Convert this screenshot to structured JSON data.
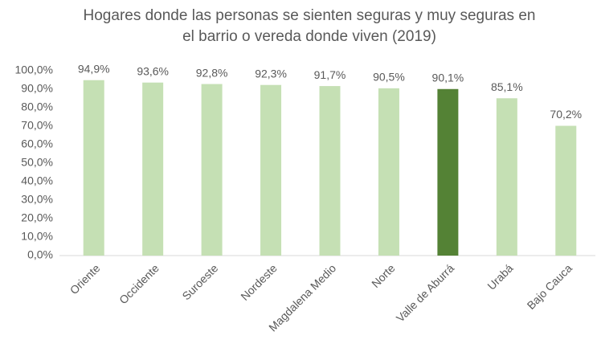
{
  "chart_data": {
    "type": "bar",
    "title": [
      "Hogares donde las personas se sienten seguras y muy seguras en",
      "el barrio o vereda donde viven (2019)"
    ],
    "categories": [
      "Oriente",
      "Occidente",
      "Suroeste",
      "Nordeste",
      "Magdalena Medio",
      "Norte",
      "Valle de Aburrá",
      "Urabá",
      "Bajo Cauca"
    ],
    "values": [
      94.9,
      93.6,
      92.8,
      92.3,
      91.7,
      90.5,
      90.1,
      85.1,
      70.2
    ],
    "value_labels": [
      "94,9%",
      "93,6%",
      "92,8%",
      "92,3%",
      "91,7%",
      "90,5%",
      "90,1%",
      "85,1%",
      "70,2%"
    ],
    "colors": [
      "#c5e0b4",
      "#c5e0b4",
      "#c5e0b4",
      "#c5e0b4",
      "#c5e0b4",
      "#c5e0b4",
      "#548235",
      "#c5e0b4",
      "#c5e0b4"
    ],
    "ylim": [
      0,
      100
    ],
    "yticks": [
      {
        "value": 0,
        "label": "0,0%"
      },
      {
        "value": 10,
        "label": "10,0%"
      },
      {
        "value": 20,
        "label": "20,0%"
      },
      {
        "value": 30,
        "label": "30,0%"
      },
      {
        "value": 40,
        "label": "40,0%"
      },
      {
        "value": 50,
        "label": "50,0%"
      },
      {
        "value": 60,
        "label": "60,0%"
      },
      {
        "value": 70,
        "label": "70,0%"
      },
      {
        "value": 80,
        "label": "80,0%"
      },
      {
        "value": 90,
        "label": "90,0%"
      },
      {
        "value": 100,
        "label": "100,0%"
      }
    ],
    "grid": false
  }
}
